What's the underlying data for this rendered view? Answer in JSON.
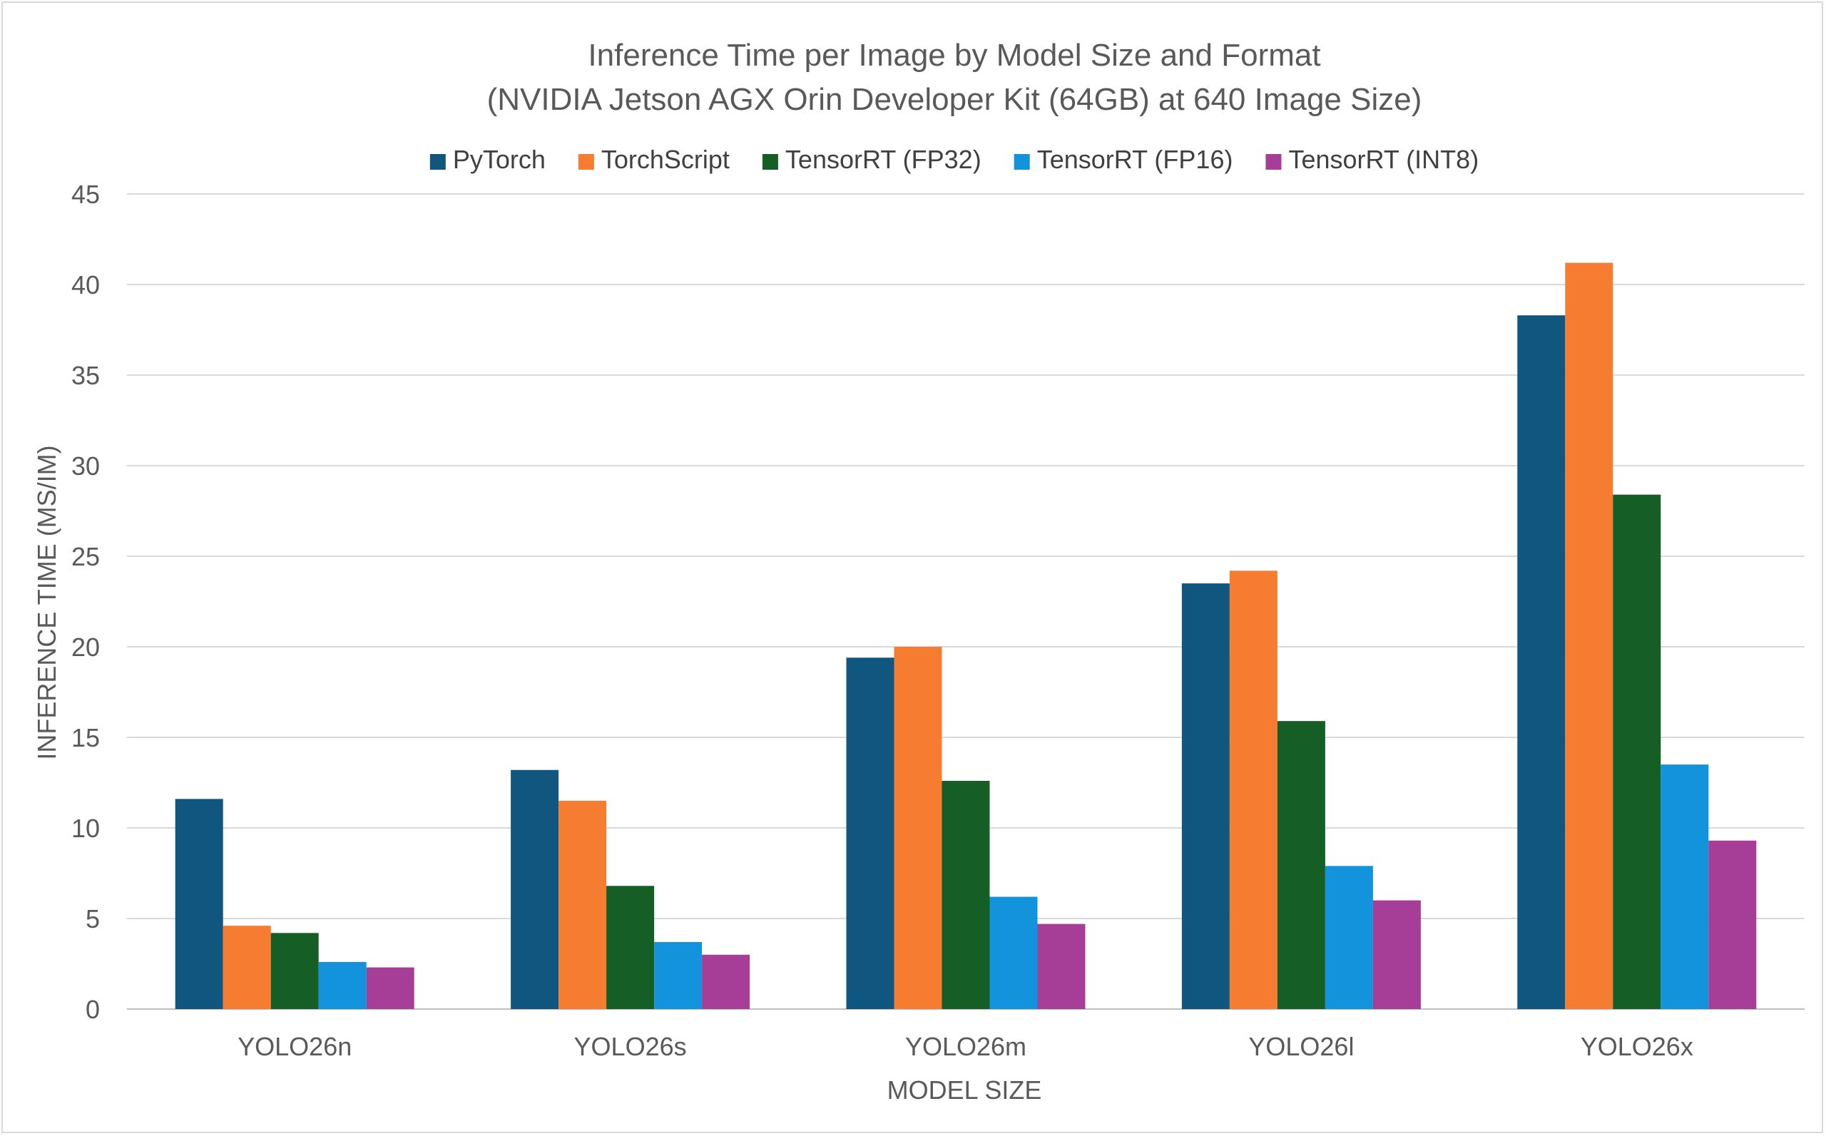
{
  "chart_data": {
    "type": "bar",
    "title": "Inference Time per Image by Model Size and Format",
    "subtitle": "(NVIDIA Jetson AGX Orin Developer Kit (64GB) at 640 Image Size)",
    "xlabel": "MODEL SIZE",
    "ylabel": "INFERENCE TIME (MS/IM)",
    "ylim": [
      0,
      45
    ],
    "yticks": [
      "0",
      "5",
      "10",
      "15",
      "20",
      "25",
      "30",
      "35",
      "40",
      "45"
    ],
    "grid": true,
    "legend_position": "top",
    "categories": [
      "YOLO26n",
      "YOLO26s",
      "YOLO26m",
      "YOLO26l",
      "YOLO26x"
    ],
    "series": [
      {
        "name": "PyTorch",
        "color": "#10567f",
        "values": [
          11.6,
          13.2,
          19.4,
          23.5,
          38.3
        ]
      },
      {
        "name": "TorchScript",
        "color": "#f57c30",
        "values": [
          4.6,
          11.5,
          20.0,
          24.2,
          41.2
        ]
      },
      {
        "name": "TensorRT (FP32)",
        "color": "#155e26",
        "values": [
          4.2,
          6.8,
          12.6,
          15.9,
          28.4
        ]
      },
      {
        "name": "TensorRT (FP16)",
        "color": "#1393db",
        "values": [
          2.6,
          3.7,
          6.2,
          7.9,
          13.5
        ]
      },
      {
        "name": "TensorRT (INT8)",
        "color": "#a63e98",
        "values": [
          2.3,
          3.0,
          4.7,
          6.0,
          9.3
        ]
      }
    ]
  }
}
